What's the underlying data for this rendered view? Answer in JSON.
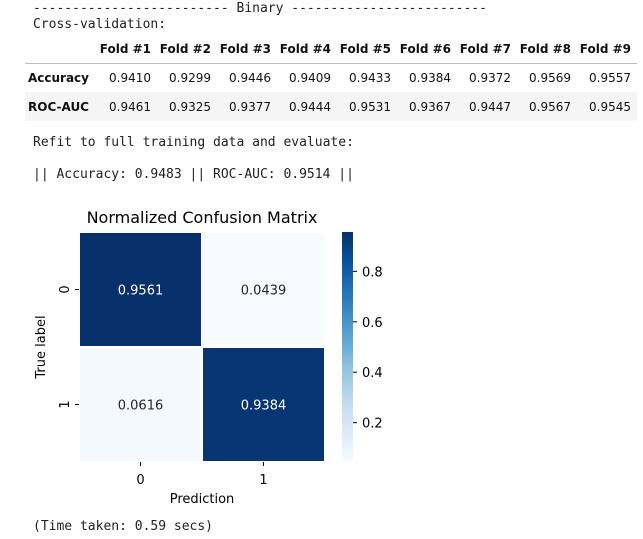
{
  "output": {
    "banner": "------------------------- Binary -------------------------",
    "cv_heading": "Cross-validation:",
    "refit_text": "Refit to full training data and evaluate:",
    "metrics_text": "|| Accuracy: 0.9483 || ROC-AUC: 0.9514 ||",
    "time_text": "(Time taken: 0.59 secs)"
  },
  "cv_table": {
    "corner": "",
    "columns": [
      "Fold #1",
      "Fold #2",
      "Fold #3",
      "Fold #4",
      "Fold #5",
      "Fold #6",
      "Fold #7",
      "Fold #8",
      "Fold #9"
    ],
    "rows": [
      {
        "label": "Accuracy",
        "values": [
          "0.9410",
          "0.9299",
          "0.9446",
          "0.9409",
          "0.9433",
          "0.9384",
          "0.9372",
          "0.9569",
          "0.9557"
        ]
      },
      {
        "label": "ROC-AUC",
        "values": [
          "0.9461",
          "0.9325",
          "0.9377",
          "0.9444",
          "0.9531",
          "0.9367",
          "0.9447",
          "0.9567",
          "0.9545"
        ]
      }
    ]
  },
  "chart_data": {
    "type": "heatmap",
    "title": "Normalized Confusion Matrix",
    "xlabel": "Prediction",
    "ylabel": "True label",
    "x_categories": [
      "0",
      "1"
    ],
    "y_categories": [
      "0",
      "1"
    ],
    "values": [
      [
        0.9561,
        0.0439
      ],
      [
        0.0616,
        0.9384
      ]
    ],
    "annotations": [
      [
        "0.9561",
        "0.0439"
      ],
      [
        "0.0616",
        "0.9384"
      ]
    ],
    "colormap": "Blues",
    "colorbar_range": [
      0.0439,
      0.9561
    ],
    "colorbar_ticks": [
      "0.2",
      "0.4",
      "0.6",
      "0.8"
    ],
    "colorbar_tick_values": [
      0.2,
      0.4,
      0.6,
      0.8
    ]
  }
}
